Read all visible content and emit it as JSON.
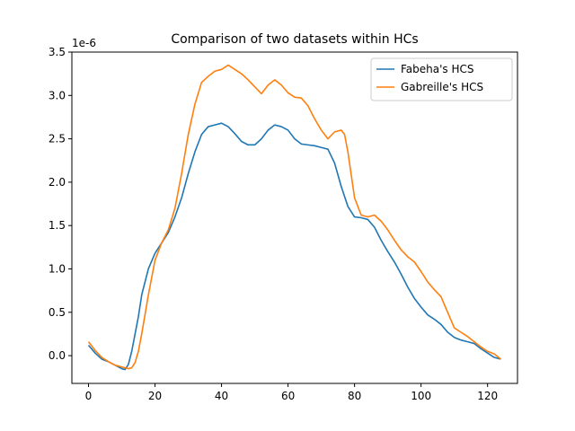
{
  "chart_data": {
    "type": "line",
    "title": "Comparison of two datasets within HCs",
    "xlabel": "",
    "ylabel": "",
    "y_offset_text": "1e-6",
    "xlim": [
      -5,
      129
    ],
    "ylim": [
      -0.32,
      3.5
    ],
    "y_scale_note": "values in units of 1e-6",
    "xticks": [
      0,
      20,
      40,
      60,
      80,
      100,
      120
    ],
    "yticks": [
      0.0,
      0.5,
      1.0,
      1.5,
      2.0,
      2.5,
      3.0,
      3.5
    ],
    "ytick_labels": [
      "0.0",
      "0.5",
      "1.0",
      "1.5",
      "2.0",
      "2.5",
      "3.0",
      "3.5"
    ],
    "grid": false,
    "legend_position": "top-right",
    "series": [
      {
        "name": "Fabeha's HCS",
        "color": "#1f77b4",
        "x": [
          0,
          2,
          4,
          6,
          8,
          10,
          11,
          12,
          13,
          14,
          15,
          16,
          18,
          20,
          22,
          24,
          26,
          28,
          30,
          32,
          34,
          36,
          38,
          40,
          42,
          44,
          46,
          48,
          50,
          52,
          54,
          56,
          58,
          60,
          62,
          64,
          66,
          68,
          70,
          72,
          74,
          76,
          78,
          80,
          82,
          84,
          86,
          88,
          90,
          92,
          94,
          96,
          98,
          100,
          102,
          104,
          106,
          108,
          110,
          112,
          114,
          116,
          118,
          120,
          122,
          124
        ],
        "y": [
          0.12,
          0.03,
          -0.04,
          -0.07,
          -0.11,
          -0.15,
          -0.16,
          -0.1,
          0.05,
          0.25,
          0.45,
          0.7,
          1.0,
          1.18,
          1.3,
          1.42,
          1.6,
          1.82,
          2.1,
          2.35,
          2.55,
          2.64,
          2.66,
          2.68,
          2.64,
          2.56,
          2.47,
          2.43,
          2.43,
          2.5,
          2.6,
          2.66,
          2.64,
          2.6,
          2.5,
          2.44,
          2.43,
          2.42,
          2.4,
          2.38,
          2.22,
          1.95,
          1.72,
          1.6,
          1.59,
          1.57,
          1.48,
          1.33,
          1.2,
          1.08,
          0.94,
          0.79,
          0.66,
          0.56,
          0.47,
          0.42,
          0.36,
          0.27,
          0.21,
          0.18,
          0.16,
          0.14,
          0.08,
          0.03,
          -0.02,
          -0.04
        ]
      },
      {
        "name": "Gabreille's HCS",
        "color": "#ff7f0e",
        "x": [
          0,
          2,
          4,
          6,
          8,
          10,
          12,
          13,
          14,
          15,
          16,
          18,
          20,
          22,
          24,
          26,
          28,
          30,
          32,
          34,
          36,
          38,
          40,
          42,
          44,
          46,
          48,
          50,
          52,
          54,
          56,
          58,
          60,
          62,
          64,
          66,
          68,
          70,
          72,
          74,
          76,
          77,
          78,
          80,
          82,
          84,
          86,
          88,
          90,
          92,
          94,
          96,
          98,
          100,
          102,
          104,
          106,
          108,
          110,
          112,
          114,
          116,
          118,
          120,
          122,
          124
        ],
        "y": [
          0.16,
          0.06,
          -0.02,
          -0.07,
          -0.11,
          -0.13,
          -0.15,
          -0.14,
          -0.08,
          0.05,
          0.25,
          0.7,
          1.1,
          1.3,
          1.45,
          1.7,
          2.1,
          2.55,
          2.9,
          3.15,
          3.22,
          3.28,
          3.3,
          3.35,
          3.3,
          3.25,
          3.18,
          3.1,
          3.02,
          3.12,
          3.18,
          3.12,
          3.03,
          2.98,
          2.97,
          2.88,
          2.73,
          2.6,
          2.5,
          2.58,
          2.6,
          2.55,
          2.35,
          1.82,
          1.62,
          1.6,
          1.62,
          1.55,
          1.45,
          1.33,
          1.22,
          1.14,
          1.08,
          0.97,
          0.85,
          0.76,
          0.68,
          0.5,
          0.32,
          0.27,
          0.22,
          0.16,
          0.1,
          0.05,
          0.02,
          -0.04
        ]
      }
    ]
  }
}
